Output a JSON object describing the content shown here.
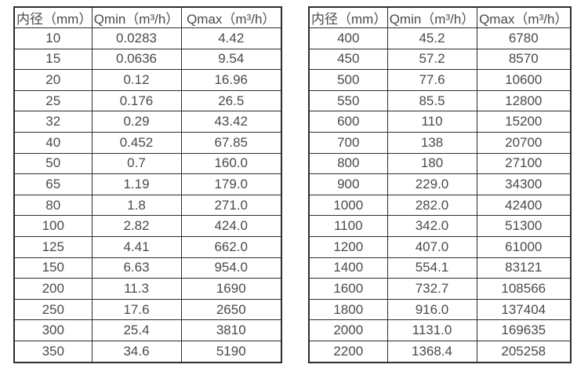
{
  "page": {
    "background": "#ffffff",
    "border_color": "#2d2d2d",
    "text_color": "#4a4a4a"
  },
  "tables": [
    {
      "name": "small-diameter-flow-table",
      "headers": [
        "内径（mm）",
        "Qmin（m³/h）",
        "Qmax（m³/h）"
      ],
      "rows": [
        [
          "10",
          "0.0283",
          "4.42"
        ],
        [
          "15",
          "0.0636",
          "9.54"
        ],
        [
          "20",
          "0.12",
          "16.96"
        ],
        [
          "25",
          "0.176",
          "26.5"
        ],
        [
          "32",
          "0.29",
          "43.42"
        ],
        [
          "40",
          "0.452",
          "67.85"
        ],
        [
          "50",
          "0.7",
          "160.0"
        ],
        [
          "65",
          "1.19",
          "179.0"
        ],
        [
          "80",
          "1.8",
          "271.0"
        ],
        [
          "100",
          "2.82",
          "424.0"
        ],
        [
          "125",
          "4.41",
          "662.0"
        ],
        [
          "150",
          "6.63",
          "954.0"
        ],
        [
          "200",
          "11.3",
          "1690"
        ],
        [
          "250",
          "17.6",
          "2650"
        ],
        [
          "300",
          "25.4",
          "3810"
        ],
        [
          "350",
          "34.6",
          "5190"
        ]
      ]
    },
    {
      "name": "large-diameter-flow-table",
      "headers": [
        "内径（mm）",
        "Qmin（m³/h）",
        "Qmax（m³/h）"
      ],
      "rows": [
        [
          "400",
          "45.2",
          "6780"
        ],
        [
          "450",
          "57.2",
          "8570"
        ],
        [
          "500",
          "77.6",
          "10600"
        ],
        [
          "550",
          "85.5",
          "12800"
        ],
        [
          "600",
          "110",
          "15200"
        ],
        [
          "700",
          "138",
          "20700"
        ],
        [
          "800",
          "180",
          "27100"
        ],
        [
          "900",
          "229.0",
          "34300"
        ],
        [
          "1000",
          "282.0",
          "42400"
        ],
        [
          "1100",
          "342.0",
          "51300"
        ],
        [
          "1200",
          "407.0",
          "61000"
        ],
        [
          "1400",
          "554.1",
          "83121"
        ],
        [
          "1600",
          "732.7",
          "108566"
        ],
        [
          "1800",
          "916.0",
          "137404"
        ],
        [
          "2000",
          "1131.0",
          "169635"
        ],
        [
          "2200",
          "1368.4",
          "205258"
        ]
      ]
    }
  ]
}
